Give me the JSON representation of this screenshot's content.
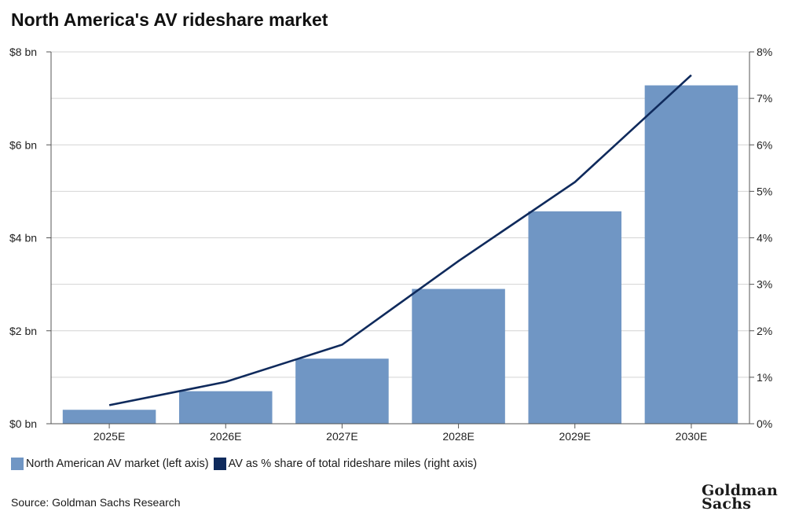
{
  "title": "North America's AV rideshare market",
  "chart_data": {
    "type": "bar",
    "categories": [
      "2025E",
      "2026E",
      "2027E",
      "2028E",
      "2029E",
      "2030E"
    ],
    "series": [
      {
        "name": "North American AV market (left axis)",
        "type": "bar",
        "axis": "left",
        "color": "#7096c4",
        "values": [
          0.3,
          0.7,
          1.4,
          2.9,
          4.57,
          7.28
        ]
      },
      {
        "name": "AV as % share of total rideshare miles (right axis)",
        "type": "line",
        "axis": "right",
        "color": "#0f2a5c",
        "values": [
          0.4,
          0.9,
          1.7,
          3.5,
          5.2,
          7.5
        ]
      }
    ],
    "left_axis": {
      "ticks": [
        "$0 bn",
        "$2 bn",
        "$4 bn",
        "$6 bn",
        "$8 bn"
      ],
      "range": [
        0,
        8
      ]
    },
    "right_axis": {
      "ticks": [
        "0%",
        "1%",
        "2%",
        "3%",
        "4%",
        "5%",
        "6%",
        "7%",
        "8%"
      ],
      "range": [
        0,
        8
      ]
    },
    "grid": true,
    "legend_position": "bottom-left"
  },
  "legend": [
    {
      "label": "North American AV market (left axis)",
      "color": "#7096c4"
    },
    {
      "label": "AV as % share of total rideshare miles (right axis)",
      "color": "#0f2a5c"
    }
  ],
  "source": "Source: Goldman Sachs Research",
  "logo": {
    "line1": "Goldman",
    "line2": "Sachs"
  }
}
